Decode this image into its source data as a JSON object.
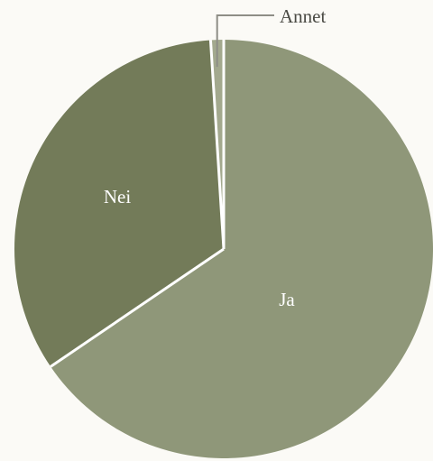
{
  "chart_data": {
    "type": "pie",
    "slices": [
      {
        "label": "Ja",
        "value": 65.5,
        "color": "#8f9779"
      },
      {
        "label": "Nei",
        "value": 33.5,
        "color": "#737b59"
      },
      {
        "label": "Annet",
        "value": 1.0,
        "color": "#a3a98e"
      }
    ],
    "separator_color": "#ffffff",
    "callout_color": "#8e8e86",
    "legend": "none"
  }
}
